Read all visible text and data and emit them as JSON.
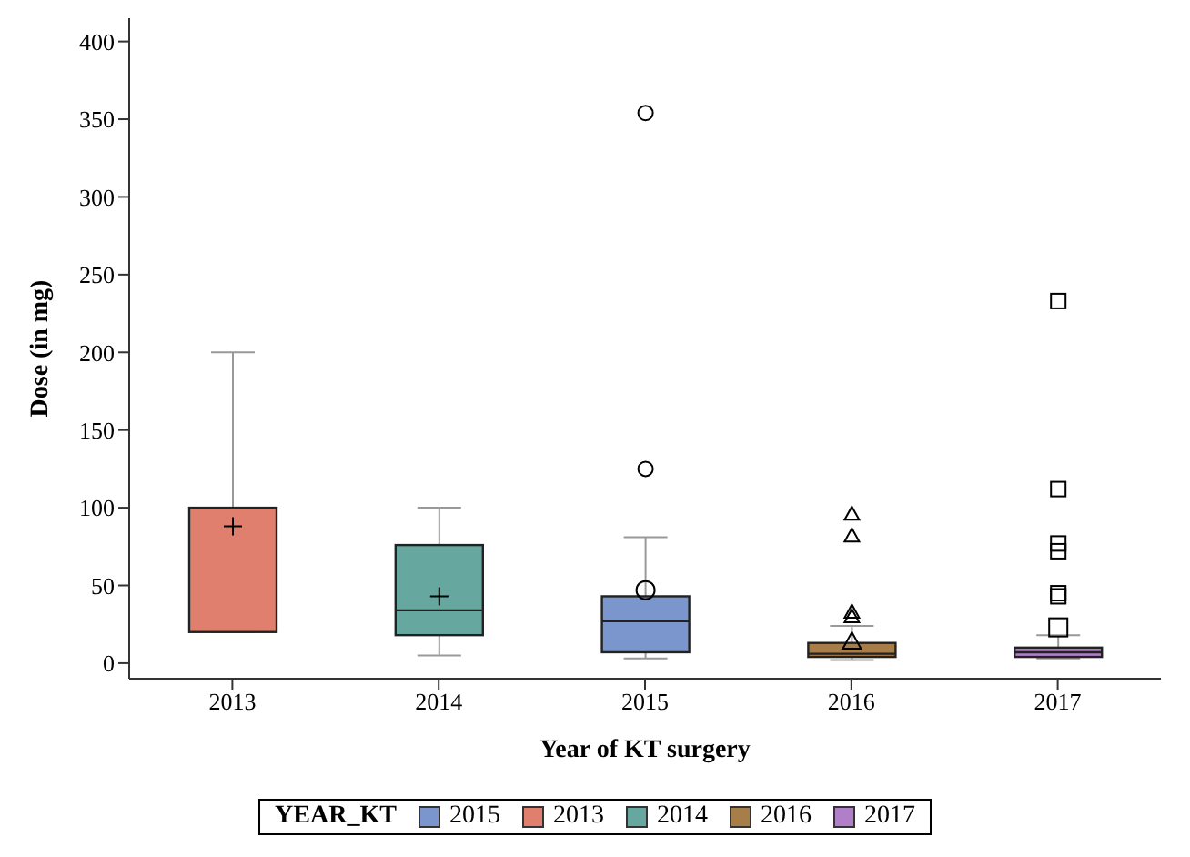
{
  "chart_data": {
    "type": "box",
    "xlabel": "Year of KT surgery",
    "ylabel": "Dose (in mg)",
    "legend_title": "YEAR_KT",
    "legend": "bottom",
    "categories": [
      "2013",
      "2014",
      "2015",
      "2016",
      "2017"
    ],
    "ylim": [
      -10,
      415
    ],
    "yticks": [
      0,
      50,
      100,
      150,
      200,
      250,
      300,
      350,
      400
    ],
    "series": [
      {
        "name": "2015",
        "color": "#7b96cc",
        "marker": "circle",
        "boxes": [
          null,
          null,
          {
            "low": 3,
            "q1": 7,
            "median": 27,
            "q3": 43,
            "high": 81,
            "mean": 47,
            "outliers": [
              125,
              354
            ]
          },
          null,
          null
        ]
      },
      {
        "name": "2013",
        "color": "#e07f6e",
        "marker": "cross",
        "boxes": [
          {
            "low": 20,
            "q1": 20,
            "median": 100,
            "q3": 100,
            "high": 200,
            "mean": 88
          },
          null,
          null,
          null,
          null
        ]
      },
      {
        "name": "2014",
        "color": "#66a8a0",
        "marker": "cross",
        "boxes": [
          null,
          {
            "low": 5,
            "q1": 18,
            "median": 34,
            "q3": 76,
            "high": 100,
            "mean": 43
          },
          null,
          null,
          null
        ]
      },
      {
        "name": "2016",
        "color": "#a77e4a",
        "marker": "triangle",
        "boxes": [
          null,
          null,
          null,
          {
            "low": 2,
            "q1": 4,
            "median": 6,
            "q3": 13,
            "high": 24,
            "mean": 14,
            "outliers": [
              30,
              33,
              82,
              96
            ]
          },
          null
        ]
      },
      {
        "name": "2017",
        "color": "#b07fc8",
        "marker": "square",
        "boxes": [
          null,
          null,
          null,
          null,
          {
            "low": 3,
            "q1": 4,
            "median": 7,
            "q3": 10,
            "high": 18,
            "mean": 23,
            "outliers": [
              43,
              45,
              72,
              77,
              112,
              233
            ]
          }
        ]
      }
    ]
  }
}
